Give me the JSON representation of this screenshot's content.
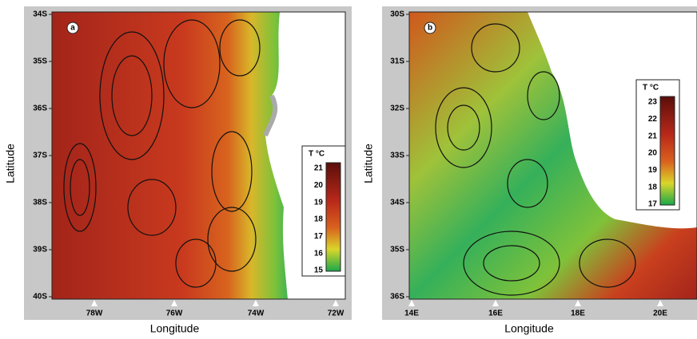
{
  "panels": [
    {
      "label": "a",
      "y_axis_title": "Latitude",
      "x_axis_title": "Longitude",
      "y_ticks": [
        "34S",
        "35S",
        "36S",
        "37S",
        "38S",
        "39S",
        "40S"
      ],
      "x_ticks": [
        "78W",
        "76W",
        "74W",
        "72W"
      ],
      "colorbar": {
        "title": "T  °C",
        "ticks": [
          "21",
          "20",
          "19",
          "18",
          "17",
          "16",
          "15"
        ]
      }
    },
    {
      "label": "b",
      "y_axis_title": "Latitude",
      "x_axis_title": "Longitude",
      "y_ticks": [
        "30S",
        "31S",
        "32S",
        "33S",
        "34S",
        "35S",
        "36S"
      ],
      "x_ticks": [
        "14E",
        "16E",
        "18E",
        "20E"
      ],
      "colorbar": {
        "title": "T  °C",
        "ticks": [
          "23",
          "22",
          "21",
          "20",
          "19",
          "18",
          "17"
        ]
      }
    }
  ]
}
